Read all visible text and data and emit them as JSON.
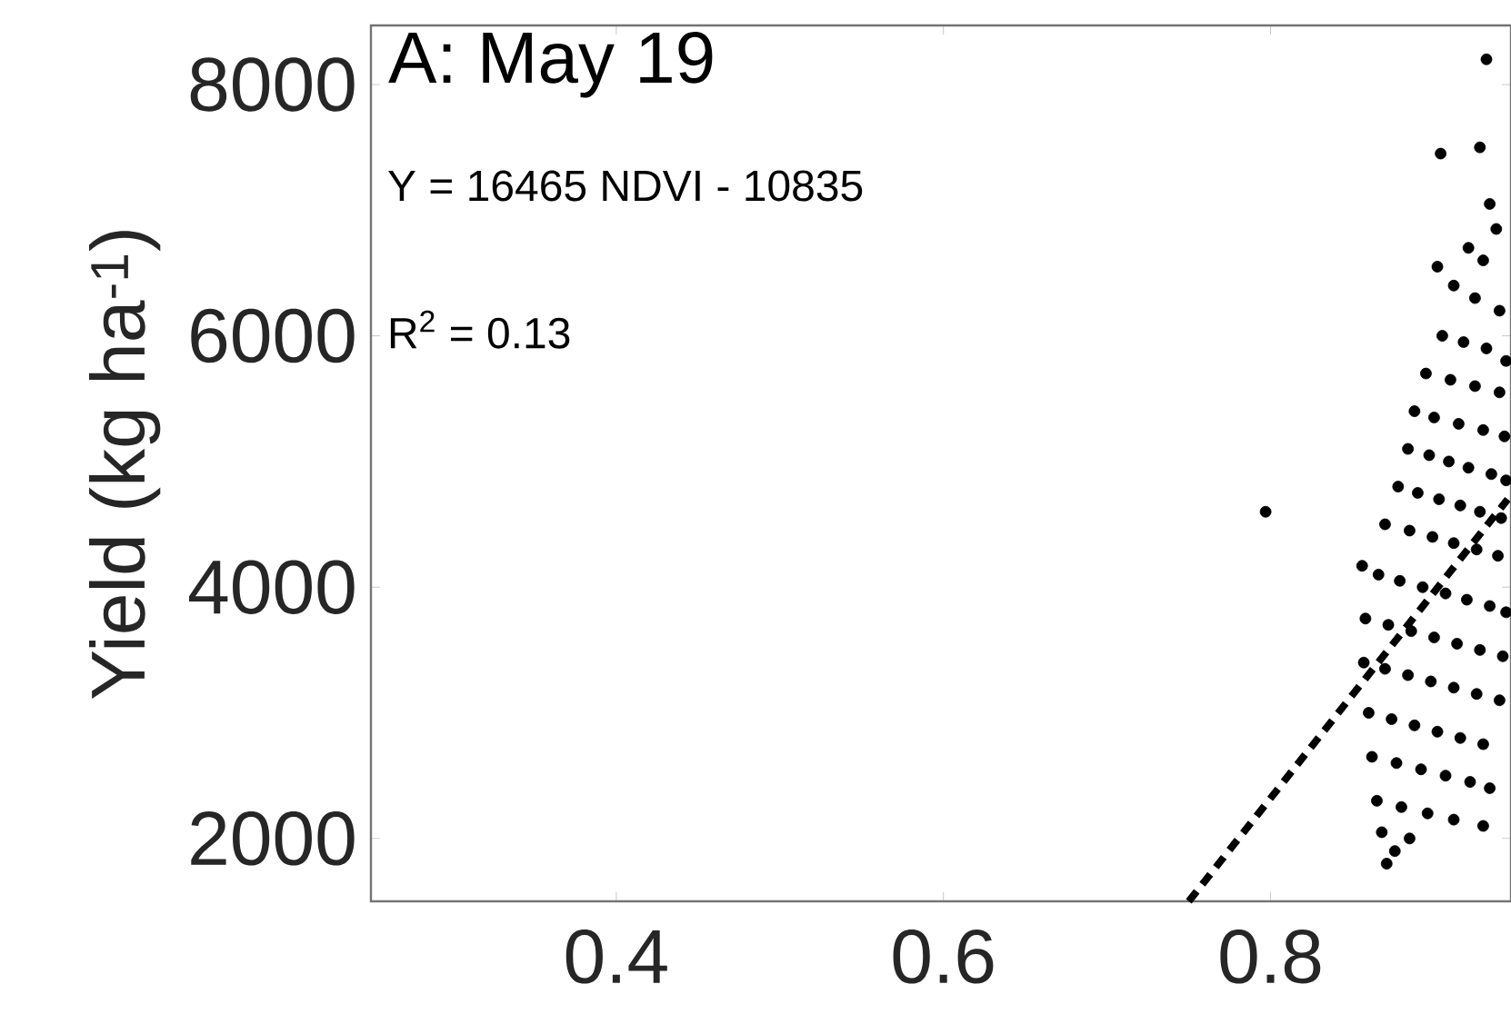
{
  "chart_data": {
    "type": "scatter",
    "title": "A: May 19",
    "ylabel": "Yield (kg ha$^{-1}$)",
    "annotations": [
      "Y = 16465 NDVI - 10835",
      "R$^{2}$ = 0.13"
    ],
    "xlim": [
      0.25,
      0.947
    ],
    "ylim": [
      1500,
      8470
    ],
    "xticks": [
      0.4,
      0.6,
      0.8
    ],
    "yticks": [
      2000,
      4000,
      6000,
      8000
    ],
    "grid": false,
    "series": [
      {
        "color": "#000000",
        "marker": "circle",
        "x": [
          0.797,
          0.932,
          0.904,
          0.928,
          0.934,
          0.902,
          0.921,
          0.938,
          0.93,
          0.912,
          0.925,
          0.94,
          0.905,
          0.918,
          0.932,
          0.944,
          0.895,
          0.91,
          0.925,
          0.94,
          0.888,
          0.9,
          0.915,
          0.93,
          0.943,
          0.884,
          0.897,
          0.909,
          0.921,
          0.935,
          0.944,
          0.878,
          0.89,
          0.903,
          0.916,
          0.928,
          0.941,
          0.87,
          0.885,
          0.899,
          0.912,
          0.926,
          0.939,
          0.856,
          0.866,
          0.879,
          0.893,
          0.907,
          0.92,
          0.934,
          0.944,
          0.858,
          0.872,
          0.886,
          0.9,
          0.914,
          0.928,
          0.942,
          0.857,
          0.87,
          0.884,
          0.898,
          0.912,
          0.926,
          0.94,
          0.86,
          0.874,
          0.888,
          0.902,
          0.916,
          0.93,
          0.862,
          0.877,
          0.892,
          0.907,
          0.922,
          0.934,
          0.865,
          0.88,
          0.896,
          0.912,
          0.93,
          0.868,
          0.885,
          0.871,
          0.876
        ],
        "values": [
          4600,
          8200,
          7450,
          7500,
          7050,
          6550,
          6700,
          6850,
          6600,
          6400,
          6300,
          6200,
          6000,
          5950,
          5900,
          5800,
          5700,
          5650,
          5600,
          5550,
          5400,
          5350,
          5300,
          5250,
          5200,
          5100,
          5050,
          5000,
          4950,
          4900,
          4850,
          4800,
          4750,
          4700,
          4650,
          4600,
          4550,
          4500,
          4450,
          4400,
          4350,
          4300,
          4250,
          4170,
          4100,
          4050,
          4000,
          3950,
          3900,
          3850,
          3800,
          3750,
          3700,
          3650,
          3600,
          3550,
          3500,
          3450,
          3400,
          3350,
          3300,
          3250,
          3200,
          3150,
          3100,
          3000,
          2950,
          2900,
          2850,
          2800,
          2750,
          2650,
          2600,
          2550,
          2500,
          2450,
          2400,
          2300,
          2250,
          2200,
          2150,
          2100,
          2050,
          2000,
          1800,
          1900
        ]
      },
      {
        "type": "line",
        "color": "#000000",
        "line_style": "dashed",
        "x": [
          0.75,
          0.945
        ],
        "values": [
          1500,
          4700
        ]
      }
    ]
  }
}
